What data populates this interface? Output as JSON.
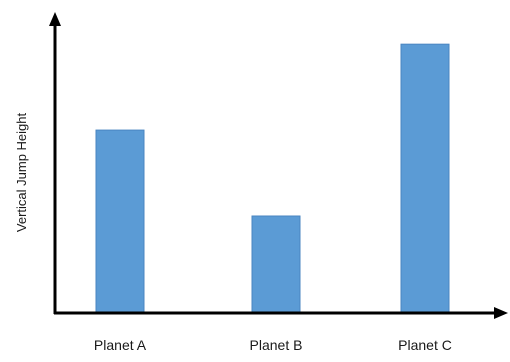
{
  "chart_data": {
    "type": "bar",
    "categories": [
      "Planet A",
      "Planet B",
      "Planet C"
    ],
    "values": [
      6.6,
      3.5,
      9.7
    ],
    "xlabel": "",
    "ylabel": "Vertical Jump Height",
    "ylim": [
      0,
      10.5
    ],
    "grid": false,
    "bar_color": "#5b9bd5",
    "bar_border_color": "#4a86c1",
    "axis_color": "#000000"
  }
}
